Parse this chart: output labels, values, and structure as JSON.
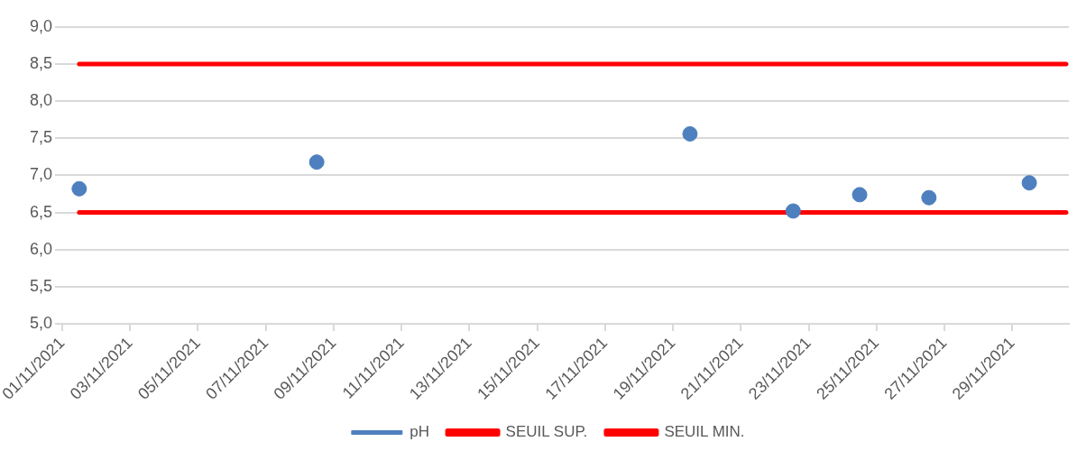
{
  "chart_data": {
    "type": "scatter",
    "x": [
      "2021-11-01T12:00",
      "2021-11-08T12:00",
      "2021-11-19T12:00",
      "2021-11-22T13:00",
      "2021-11-24T12:00",
      "2021-11-26T13:00",
      "2021-11-29T12:00"
    ],
    "series": [
      {
        "name": "pH",
        "color": "#4e7fbe",
        "values": [
          6.82,
          7.18,
          7.56,
          6.52,
          6.74,
          6.7,
          6.9
        ],
        "marker": "circle"
      },
      {
        "name": "SEUIL SUP.",
        "type": "line",
        "color": "#ff0000",
        "x": [
          "2021-11-01T12:00",
          "2021-11-30T14:00"
        ],
        "values": [
          8.5,
          8.5
        ],
        "marker": "none",
        "line_style": "solid"
      },
      {
        "name": "SEUIL MIN.",
        "type": "line",
        "color": "#ff0000",
        "x": [
          "2021-11-01T12:00",
          "2021-11-30T14:00"
        ],
        "values": [
          6.5,
          6.5
        ],
        "marker": "none",
        "line_style": "solid"
      }
    ],
    "xlim": [
      "2021-11-01",
      "2021-11-30T16:00"
    ],
    "xticks": [
      {
        "value": "2021-11-01",
        "label": "01/11/2021"
      },
      {
        "value": "2021-11-03",
        "label": "03/11/2021"
      },
      {
        "value": "2021-11-05",
        "label": "05/11/2021"
      },
      {
        "value": "2021-11-07",
        "label": "07/11/2021"
      },
      {
        "value": "2021-11-09",
        "label": "09/11/2021"
      },
      {
        "value": "2021-11-11",
        "label": "11/11/2021"
      },
      {
        "value": "2021-11-13",
        "label": "13/11/2021"
      },
      {
        "value": "2021-11-15",
        "label": "15/11/2021"
      },
      {
        "value": "2021-11-17",
        "label": "17/11/2021"
      },
      {
        "value": "2021-11-19",
        "label": "19/11/2021"
      },
      {
        "value": "2021-11-21",
        "label": "21/11/2021"
      },
      {
        "value": "2021-11-23",
        "label": "23/11/2021"
      },
      {
        "value": "2021-11-25",
        "label": "25/11/2021"
      },
      {
        "value": "2021-11-27",
        "label": "27/11/2021"
      },
      {
        "value": "2021-11-29",
        "label": "29/11/2021"
      }
    ],
    "ylim": [
      5,
      9
    ],
    "yticks": [
      {
        "value": 5,
        "label": "5,0"
      },
      {
        "value": 5.5,
        "label": "5,5"
      },
      {
        "value": 6,
        "label": "6,0"
      },
      {
        "value": 6.5,
        "label": "6,5"
      },
      {
        "value": 7,
        "label": "7,0"
      },
      {
        "value": 7.5,
        "label": "7,5"
      },
      {
        "value": 8,
        "label": "8,0"
      },
      {
        "value": 8.5,
        "label": "8,5"
      },
      {
        "value": 9,
        "label": "9,0"
      }
    ],
    "grid": "y",
    "legend": "bottom"
  }
}
